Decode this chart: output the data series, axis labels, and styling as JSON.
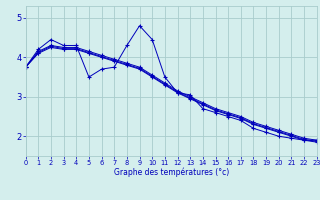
{
  "xlabel": "Graphe des températures (°c)",
  "background_color": "#d4eeed",
  "line_color": "#0000bb",
  "grid_color": "#a8cccc",
  "ylim": [
    1.5,
    5.3
  ],
  "xlim": [
    0,
    23
  ],
  "yticks": [
    2,
    3,
    4,
    5
  ],
  "xticks": [
    0,
    1,
    2,
    3,
    4,
    5,
    6,
    7,
    8,
    9,
    10,
    11,
    12,
    13,
    14,
    15,
    16,
    17,
    18,
    19,
    20,
    21,
    22,
    23
  ],
  "x_hours": [
    0,
    1,
    2,
    3,
    4,
    5,
    6,
    7,
    8,
    9,
    10,
    11,
    12,
    13,
    14,
    15,
    16,
    17,
    18,
    19,
    20,
    21,
    22,
    23
  ],
  "line1": [
    3.75,
    4.2,
    4.45,
    4.3,
    4.3,
    3.5,
    3.7,
    3.75,
    4.3,
    4.8,
    4.45,
    3.5,
    3.1,
    3.05,
    2.7,
    2.6,
    2.5,
    2.4,
    2.2,
    2.1,
    2.0,
    1.95,
    1.9,
    1.9
  ],
  "line2": [
    3.75,
    4.15,
    4.3,
    4.25,
    4.25,
    4.15,
    4.05,
    3.95,
    3.85,
    3.75,
    3.55,
    3.35,
    3.15,
    3.0,
    2.85,
    2.7,
    2.6,
    2.5,
    2.35,
    2.25,
    2.15,
    2.05,
    1.95,
    1.9
  ],
  "line3": [
    3.75,
    4.12,
    4.28,
    4.22,
    4.22,
    4.12,
    4.02,
    3.92,
    3.82,
    3.72,
    3.52,
    3.32,
    3.12,
    2.97,
    2.82,
    2.67,
    2.57,
    2.47,
    2.32,
    2.22,
    2.12,
    2.02,
    1.92,
    1.87
  ],
  "line4": [
    3.75,
    4.1,
    4.25,
    4.2,
    4.2,
    4.1,
    4.0,
    3.9,
    3.8,
    3.7,
    3.5,
    3.3,
    3.1,
    2.95,
    2.8,
    2.65,
    2.55,
    2.45,
    2.3,
    2.2,
    2.1,
    2.0,
    1.9,
    1.85
  ]
}
